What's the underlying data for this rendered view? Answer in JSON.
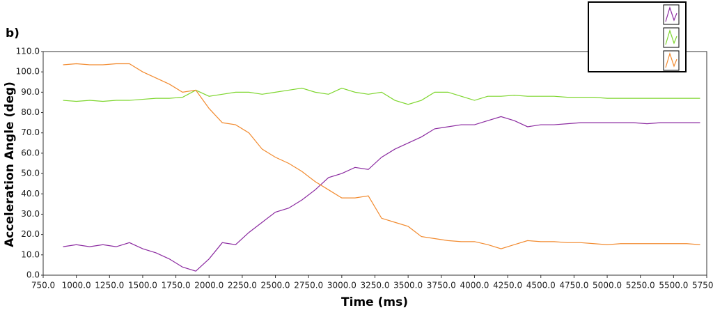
{
  "chart_data": {
    "type": "line",
    "title": "b)",
    "x_label": "Time (ms)",
    "y_label": "Acceleration Angle (deg)",
    "x": [
      900,
      1000,
      1100,
      1200,
      1300,
      1400,
      1500,
      1600,
      1700,
      1800,
      1900,
      2000,
      2100,
      2200,
      2300,
      2400,
      2500,
      2600,
      2700,
      2800,
      2900,
      3000,
      3100,
      3200,
      3300,
      3400,
      3500,
      3600,
      3700,
      3800,
      3900,
      4000,
      4100,
      4200,
      4300,
      4400,
      4500,
      4600,
      4700,
      4800,
      4900,
      5000,
      5100,
      5200,
      5300,
      5400,
      5500,
      5600,
      5700
    ],
    "series": [
      {
        "color": "#8b2aa0",
        "values": [
          14,
          15,
          14,
          15,
          14,
          16,
          13,
          11,
          8,
          4,
          2,
          8,
          16,
          15,
          21,
          26,
          31,
          33,
          37,
          42,
          48,
          50,
          53,
          52,
          58,
          62,
          65,
          68,
          72,
          73,
          74,
          74,
          76,
          78,
          76,
          73,
          74,
          74,
          74.5,
          75,
          75,
          75,
          75,
          75,
          74.5,
          75,
          75,
          75,
          75
        ]
      },
      {
        "color": "#7ed62e",
        "values": [
          86,
          85.5,
          86,
          85.5,
          86,
          86,
          86.5,
          87,
          87,
          87.5,
          91,
          88,
          89,
          90,
          90,
          89,
          90,
          91,
          92,
          90,
          89,
          92,
          90,
          89,
          90,
          86,
          84,
          86,
          90,
          90,
          88,
          86,
          88,
          88,
          88.5,
          88,
          88,
          88,
          87.5,
          87.5,
          87.5,
          87,
          87,
          87,
          87,
          87,
          87,
          87,
          87
        ]
      },
      {
        "color": "#f28a2e",
        "values": [
          103.5,
          104,
          103.5,
          103.5,
          104,
          104,
          100,
          97,
          94,
          90,
          91,
          82,
          75,
          74,
          70,
          62,
          58,
          55,
          51,
          46,
          42,
          38,
          38,
          39,
          28,
          26,
          24,
          19,
          18,
          17,
          16.5,
          16.5,
          15,
          13,
          15,
          17,
          16.5,
          16.5,
          16,
          16,
          15.5,
          15,
          15.5,
          15.5,
          15.5,
          15.5,
          15.5,
          15.5,
          15
        ]
      }
    ],
    "xlim": [
      750,
      5750
    ],
    "xticks": [
      {
        "value": 750,
        "label": "750.0"
      },
      {
        "value": 1000,
        "label": "1000.0"
      },
      {
        "value": 1250,
        "label": "1250.0"
      },
      {
        "value": 1500,
        "label": "1500.0"
      },
      {
        "value": 1750,
        "label": "1750.0"
      },
      {
        "value": 2000,
        "label": "2000.0"
      },
      {
        "value": 2250,
        "label": "2250.0"
      },
      {
        "value": 2500,
        "label": "2500.0"
      },
      {
        "value": 2750,
        "label": "2750.0"
      },
      {
        "value": 3000,
        "label": "3000.0"
      },
      {
        "value": 3250,
        "label": "3250.0"
      },
      {
        "value": 3500,
        "label": "3500.0"
      },
      {
        "value": 3750,
        "label": "3750.0"
      },
      {
        "value": 4000,
        "label": "4000.0"
      },
      {
        "value": 4250,
        "label": "4250.0"
      },
      {
        "value": 4500,
        "label": "4500.0"
      },
      {
        "value": 4750,
        "label": "4750.0"
      },
      {
        "value": 5000,
        "label": "5000.0"
      },
      {
        "value": 5250,
        "label": "5250.0"
      },
      {
        "value": 5500,
        "label": "5500.0"
      },
      {
        "value": 5750,
        "label": "5750.0"
      }
    ],
    "ylim": [
      0,
      110
    ],
    "yticks": [
      {
        "value": 0,
        "label": "0.0"
      },
      {
        "value": 10,
        "label": "10.0"
      },
      {
        "value": 20,
        "label": "20.0"
      },
      {
        "value": 30,
        "label": "30.0"
      },
      {
        "value": 40,
        "label": "40.0"
      },
      {
        "value": 50,
        "label": "50.0"
      },
      {
        "value": 60,
        "label": "60.0"
      },
      {
        "value": 70,
        "label": "70.0"
      },
      {
        "value": 80,
        "label": "80.0"
      },
      {
        "value": 90,
        "label": "90.0"
      },
      {
        "value": 100,
        "label": "100.0"
      },
      {
        "value": 110,
        "label": "110.0"
      }
    ],
    "grid": false,
    "legend": "top-right"
  }
}
